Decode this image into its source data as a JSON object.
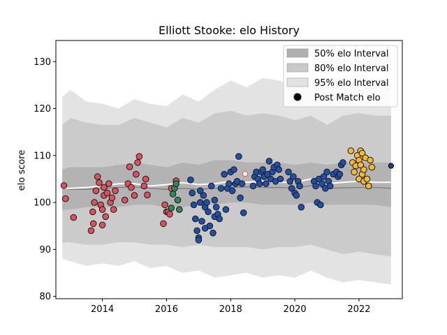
{
  "chart_data": {
    "type": "scatter",
    "title": "Elliott Stooke: elo History",
    "xlabel": "",
    "ylabel": "elo score",
    "xlim": [
      2012.55,
      2023.35
    ],
    "ylim": [
      79.5,
      134.5
    ],
    "x_ticks": [
      2014,
      2016,
      2018,
      2020,
      2022
    ],
    "x_tick_labels": [
      "2014",
      "2016",
      "2018",
      "2020",
      "2022"
    ],
    "y_ticks": [
      80,
      90,
      100,
      110,
      120,
      130
    ],
    "y_tick_labels": [
      "80",
      "90",
      "100",
      "110",
      "120",
      "130"
    ],
    "grid": false,
    "legend_position": "top-right",
    "legend": [
      {
        "label": "50% elo Interval",
        "kind": "band",
        "color": "#b0b0b0"
      },
      {
        "label": "80% elo Interval",
        "kind": "band",
        "color": "#c8c8c8"
      },
      {
        "label": "95% elo Interval",
        "kind": "band",
        "color": "#e2e2e2"
      },
      {
        "label": "Post Match elo",
        "kind": "marker",
        "color": "#000000"
      }
    ],
    "colors": {
      "band50": "#b3b3b3",
      "band80": "#cbcbcb",
      "band95": "#e3e3e3",
      "median_line": "#ffffff",
      "mean_line": "#7a7a7a",
      "red_team": "#e0505a",
      "green_team": "#2a8a5e",
      "blue_team": "#1f4fa8",
      "gold_team": "#f5b82e",
      "marker_edge": "#1a1a1a"
    },
    "bands": {
      "x": [
        2012.75,
        2013.0,
        2013.5,
        2014.0,
        2014.5,
        2015.0,
        2015.5,
        2016.0,
        2016.5,
        2017.0,
        2017.5,
        2018.0,
        2018.5,
        2019.0,
        2019.5,
        2020.0,
        2020.5,
        2021.0,
        2021.5,
        2022.0,
        2022.5,
        2023.0
      ],
      "p95_hi": [
        122.5,
        124.0,
        121.5,
        121.0,
        120.0,
        122.0,
        121.0,
        120.5,
        123.0,
        121.5,
        124.0,
        126.0,
        124.5,
        126.5,
        126.0,
        124.5,
        126.0,
        123.5,
        125.5,
        127.5,
        126.0,
        125.0
      ],
      "p80_hi": [
        116.5,
        118.0,
        117.0,
        116.5,
        116.5,
        118.0,
        117.0,
        116.0,
        118.0,
        117.0,
        119.0,
        119.5,
        118.5,
        119.0,
        118.5,
        117.5,
        118.5,
        116.5,
        118.5,
        119.0,
        118.5,
        118.5
      ],
      "p50_hi": [
        107.0,
        107.5,
        107.5,
        107.5,
        108.0,
        108.5,
        108.0,
        107.5,
        108.5,
        108.0,
        109.0,
        109.0,
        108.5,
        108.5,
        108.5,
        108.0,
        108.5,
        108.0,
        108.5,
        108.5,
        108.5,
        108.5
      ],
      "p50_lo": [
        98.5,
        98.5,
        99.0,
        99.0,
        99.0,
        99.5,
        99.5,
        99.0,
        99.0,
        99.5,
        99.5,
        100.0,
        100.0,
        99.5,
        99.5,
        99.5,
        100.0,
        99.5,
        99.5,
        99.5,
        99.5,
        99.0
      ],
      "p80_lo": [
        91.5,
        91.5,
        91.0,
        91.0,
        91.5,
        91.5,
        91.0,
        91.0,
        90.5,
        91.0,
        90.5,
        90.5,
        90.5,
        90.0,
        90.5,
        90.5,
        91.0,
        90.0,
        89.0,
        89.5,
        89.0,
        88.5
      ],
      "p95_lo": [
        88.0,
        87.5,
        86.5,
        87.0,
        86.5,
        87.5,
        86.0,
        86.5,
        85.0,
        85.5,
        84.0,
        84.5,
        85.0,
        84.0,
        84.5,
        84.0,
        85.5,
        84.0,
        83.0,
        83.5,
        83.0,
        82.5
      ],
      "median": [
        103.0,
        103.0,
        103.2,
        103.5,
        104.0,
        104.0,
        103.5,
        103.8,
        104.2,
        103.8,
        104.0,
        104.5,
        104.3,
        104.5,
        104.3,
        104.3,
        105.0,
        104.0,
        104.3,
        104.5,
        104.3,
        104.3
      ],
      "mean": [
        103.0,
        102.8,
        102.8,
        103.0,
        103.2,
        103.3,
        103.0,
        102.8,
        103.0,
        102.8,
        103.0,
        103.2,
        103.3,
        103.2,
        103.2,
        103.0,
        103.6,
        103.0,
        103.1,
        103.2,
        103.2,
        103.0
      ]
    },
    "series": [
      {
        "color_key": "red_team",
        "x": [
          2012.8,
          2012.85,
          2013.1,
          2013.65,
          2013.7,
          2013.72,
          2013.75,
          2013.8,
          2013.85,
          2013.9,
          2013.95,
          2014.0,
          2014.0,
          2014.05,
          2014.05,
          2014.1,
          2014.15,
          2014.2,
          2014.25,
          2014.3,
          2014.35,
          2014.4,
          2014.7,
          2014.8,
          2014.85,
          2014.9,
          2015.0,
          2015.05,
          2015.1,
          2015.15,
          2015.3,
          2015.35,
          2015.4,
          2015.9,
          2015.95,
          2016.0,
          2016.05,
          2016.1,
          2016.15,
          2016.3
        ],
        "y": [
          103.6,
          100.8,
          96.8,
          94.0,
          98.0,
          95.5,
          100.0,
          102.5,
          105.5,
          104.2,
          99.5,
          95.2,
          98.5,
          101.5,
          103.2,
          97.0,
          102.0,
          104.0,
          100.0,
          101.0,
          98.5,
          102.5,
          100.5,
          104.0,
          107.6,
          103.2,
          101.5,
          106.0,
          108.5,
          109.8,
          103.5,
          105.0,
          101.6,
          95.5,
          99.5,
          98.0,
          98.0,
          97.5,
          103.0,
          104.6
        ]
      },
      {
        "color_key": "green_team",
        "x": [
          2016.15,
          2016.2,
          2016.25,
          2016.3,
          2016.35,
          2016.4
        ],
        "y": [
          98.8,
          101.8,
          103.0,
          104.0,
          100.5,
          98.5
        ]
      },
      {
        "color_key": "blue_team",
        "x": [
          2016.75,
          2016.8,
          2016.85,
          2016.9,
          2016.95,
          2017.0,
          2017.0,
          2017.05,
          2017.05,
          2017.1,
          2017.15,
          2017.2,
          2017.2,
          2017.25,
          2017.3,
          2017.35,
          2017.4,
          2017.45,
          2017.5,
          2017.5,
          2017.55,
          2017.6,
          2017.65,
          2017.7,
          2017.8,
          2017.85,
          2017.9,
          2017.95,
          2018.0,
          2018.05,
          2018.1,
          2018.15,
          2018.2,
          2018.25,
          2018.3,
          2018.35,
          2018.4,
          2018.7,
          2018.75,
          2018.8,
          2018.85,
          2018.9,
          2018.95,
          2019.0,
          2019.05,
          2019.1,
          2019.15,
          2019.2,
          2019.25,
          2019.3,
          2019.35,
          2019.4,
          2019.45,
          2019.5,
          2019.55,
          2019.8,
          2019.85,
          2019.9,
          2019.95,
          2020.0,
          2020.05,
          2020.1,
          2020.15,
          2020.2,
          2020.6,
          2020.65,
          2020.7,
          2020.75,
          2020.8,
          2020.85,
          2020.9,
          2020.95,
          2021.0,
          2021.05,
          2021.1,
          2021.2,
          2021.3,
          2021.35,
          2021.4,
          2021.45,
          2021.5
        ],
        "y": [
          104.8,
          102.0,
          99.5,
          96.5,
          94.0,
          92.5,
          92.0,
          100.0,
          102.5,
          96.0,
          101.5,
          99.0,
          94.5,
          100.0,
          98.0,
          95.0,
          103.5,
          93.5,
          97.0,
          100.5,
          99.0,
          97.5,
          96.5,
          103.0,
          106.0,
          98.5,
          103.0,
          104.0,
          106.5,
          102.5,
          107.0,
          104.0,
          104.5,
          109.8,
          101.0,
          104.0,
          97.8,
          103.5,
          105.5,
          106.5,
          105.0,
          104.0,
          106.5,
          107.0,
          105.5,
          104.0,
          106.0,
          108.8,
          105.0,
          106.5,
          107.5,
          104.5,
          108.0,
          107.0,
          105.0,
          106.5,
          104.5,
          103.0,
          105.5,
          102.0,
          101.5,
          104.5,
          103.5,
          99.0,
          104.5,
          103.5,
          100.0,
          105.0,
          99.5,
          104.0,
          105.5,
          103.0,
          106.5,
          104.5,
          103.5,
          106.0,
          106.5,
          105.5,
          106.0,
          108.0,
          108.5
        ]
      },
      {
        "color_key": "gold_team",
        "x": [
          2021.75,
          2021.8,
          2021.85,
          2021.9,
          2021.95,
          2022.0,
          2022.0,
          2022.05,
          2022.05,
          2022.1,
          2022.1,
          2022.15,
          2022.15,
          2022.2,
          2022.25,
          2022.3,
          2022.35,
          2022.4
        ],
        "y": [
          111.0,
          108.5,
          106.5,
          107.8,
          110.0,
          109.0,
          105.0,
          111.0,
          108.0,
          106.0,
          110.5,
          107.0,
          104.5,
          109.5,
          105.0,
          103.5,
          109.0,
          107.5
        ]
      }
    ],
    "highlight_points": [
      {
        "x": 2018.45,
        "y": 106.1,
        "fill": "#ffffff",
        "edge": "#e0505a"
      },
      {
        "x": 2023.0,
        "y": 107.8,
        "fill": "#1f3f8f",
        "edge": "#000000"
      }
    ]
  }
}
